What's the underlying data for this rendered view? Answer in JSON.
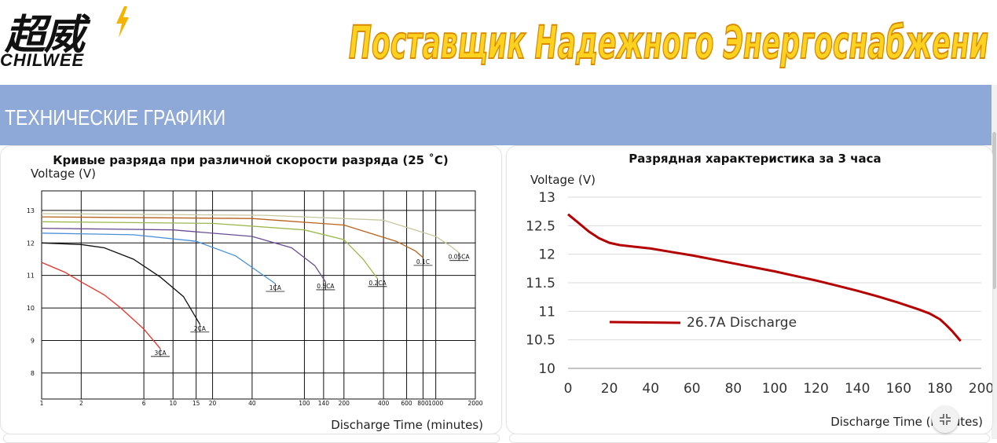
{
  "header": {
    "logo_cn": "超威",
    "logo_en": "CHILWEE",
    "slogan": "Поставщик Надежного Энергоснабжени"
  },
  "section": {
    "title": "ТЕХНИЧЕСКИЕ ГРАФИКИ"
  },
  "colors": {
    "section_bar": "#8ea8d8",
    "slogan_fill": "#ffd21f",
    "slogan_stroke": "#d88a00",
    "discharge_line": "#b40000"
  },
  "icons": {
    "fullscreen": "fullscreen-icon",
    "logo_bolt": "lightning-bolt-icon"
  },
  "chart_data": [
    {
      "type": "line",
      "title": "Кривые разряда при различной скорости разряда (25 ˚C)",
      "ylabel": "Voltage (V)",
      "xlabel": "Discharge Time (minutes)",
      "x_scale": "log",
      "x_ticks": [
        "1",
        "2",
        "6",
        "10",
        "15",
        "20",
        "40",
        "100",
        "140",
        "200",
        "400",
        "600",
        "800",
        "1000",
        "2000"
      ],
      "y_ticks": [
        "13",
        "12",
        "11",
        "10",
        "9",
        "8"
      ],
      "ylim": [
        7.2,
        13.6
      ],
      "grid": true,
      "series": [
        {
          "name": "3CA",
          "color": "#e8322a",
          "x": [
            1,
            1.5,
            2,
            3,
            4,
            6,
            8
          ],
          "y": [
            11.4,
            11.1,
            10.8,
            10.4,
            10.0,
            9.35,
            8.75
          ]
        },
        {
          "name": "2CA",
          "color": "#111111",
          "x": [
            1,
            2,
            3,
            5,
            8,
            12,
            16
          ],
          "y": [
            12.0,
            11.95,
            11.85,
            11.5,
            10.95,
            10.35,
            9.5
          ]
        },
        {
          "name": "1CA",
          "color": "#4a90d9",
          "x": [
            1,
            5,
            15,
            30,
            45,
            60
          ],
          "y": [
            12.3,
            12.25,
            12.05,
            11.6,
            11.1,
            10.75
          ]
        },
        {
          "name": "0.5CA",
          "color": "#6a4c93",
          "x": [
            1,
            10,
            40,
            80,
            120,
            145
          ],
          "y": [
            12.45,
            12.4,
            12.2,
            11.85,
            11.3,
            10.8
          ]
        },
        {
          "name": "0.2CA",
          "color": "#9ab84a",
          "x": [
            1,
            20,
            100,
            200,
            280,
            360
          ],
          "y": [
            12.65,
            12.6,
            12.4,
            12.1,
            11.5,
            10.9
          ]
        },
        {
          "name": "0.1C",
          "color": "#b8631c",
          "x": [
            1,
            40,
            200,
            500,
            700,
            800
          ],
          "y": [
            12.8,
            12.75,
            12.55,
            12.05,
            11.75,
            11.55
          ]
        },
        {
          "name": "0.05CA",
          "color": "#c8c8a0",
          "x": [
            1,
            50,
            400,
            1000,
            1300,
            1500
          ],
          "y": [
            12.9,
            12.85,
            12.7,
            12.2,
            11.9,
            11.7
          ]
        }
      ]
    },
    {
      "type": "line",
      "title": "Разрядная характеристика за 3 часа",
      "ylabel": "Voltage (V)",
      "xlabel": "Discharge Time (minutes)",
      "xlim": [
        0,
        200
      ],
      "ylim": [
        10,
        13
      ],
      "x_ticks": [
        "0",
        "20",
        "40",
        "60",
        "80",
        "100",
        "120",
        "140",
        "160",
        "180",
        "200"
      ],
      "y_ticks": [
        "13",
        "12.5",
        "12",
        "11.5",
        "11",
        "10.5",
        "10"
      ],
      "grid": "horizontal",
      "legend_position": "center-left",
      "series": [
        {
          "name": "26.7A Discharge",
          "color": "#b40000",
          "x": [
            0,
            5,
            10,
            15,
            20,
            25,
            30,
            40,
            50,
            60,
            70,
            80,
            90,
            100,
            110,
            120,
            130,
            140,
            150,
            160,
            170,
            175,
            180,
            183,
            186,
            190
          ],
          "y": [
            12.7,
            12.55,
            12.4,
            12.28,
            12.2,
            12.16,
            12.14,
            12.1,
            12.04,
            11.98,
            11.91,
            11.84,
            11.77,
            11.7,
            11.62,
            11.54,
            11.45,
            11.36,
            11.26,
            11.15,
            11.03,
            10.96,
            10.86,
            10.76,
            10.65,
            10.48
          ]
        }
      ]
    }
  ]
}
